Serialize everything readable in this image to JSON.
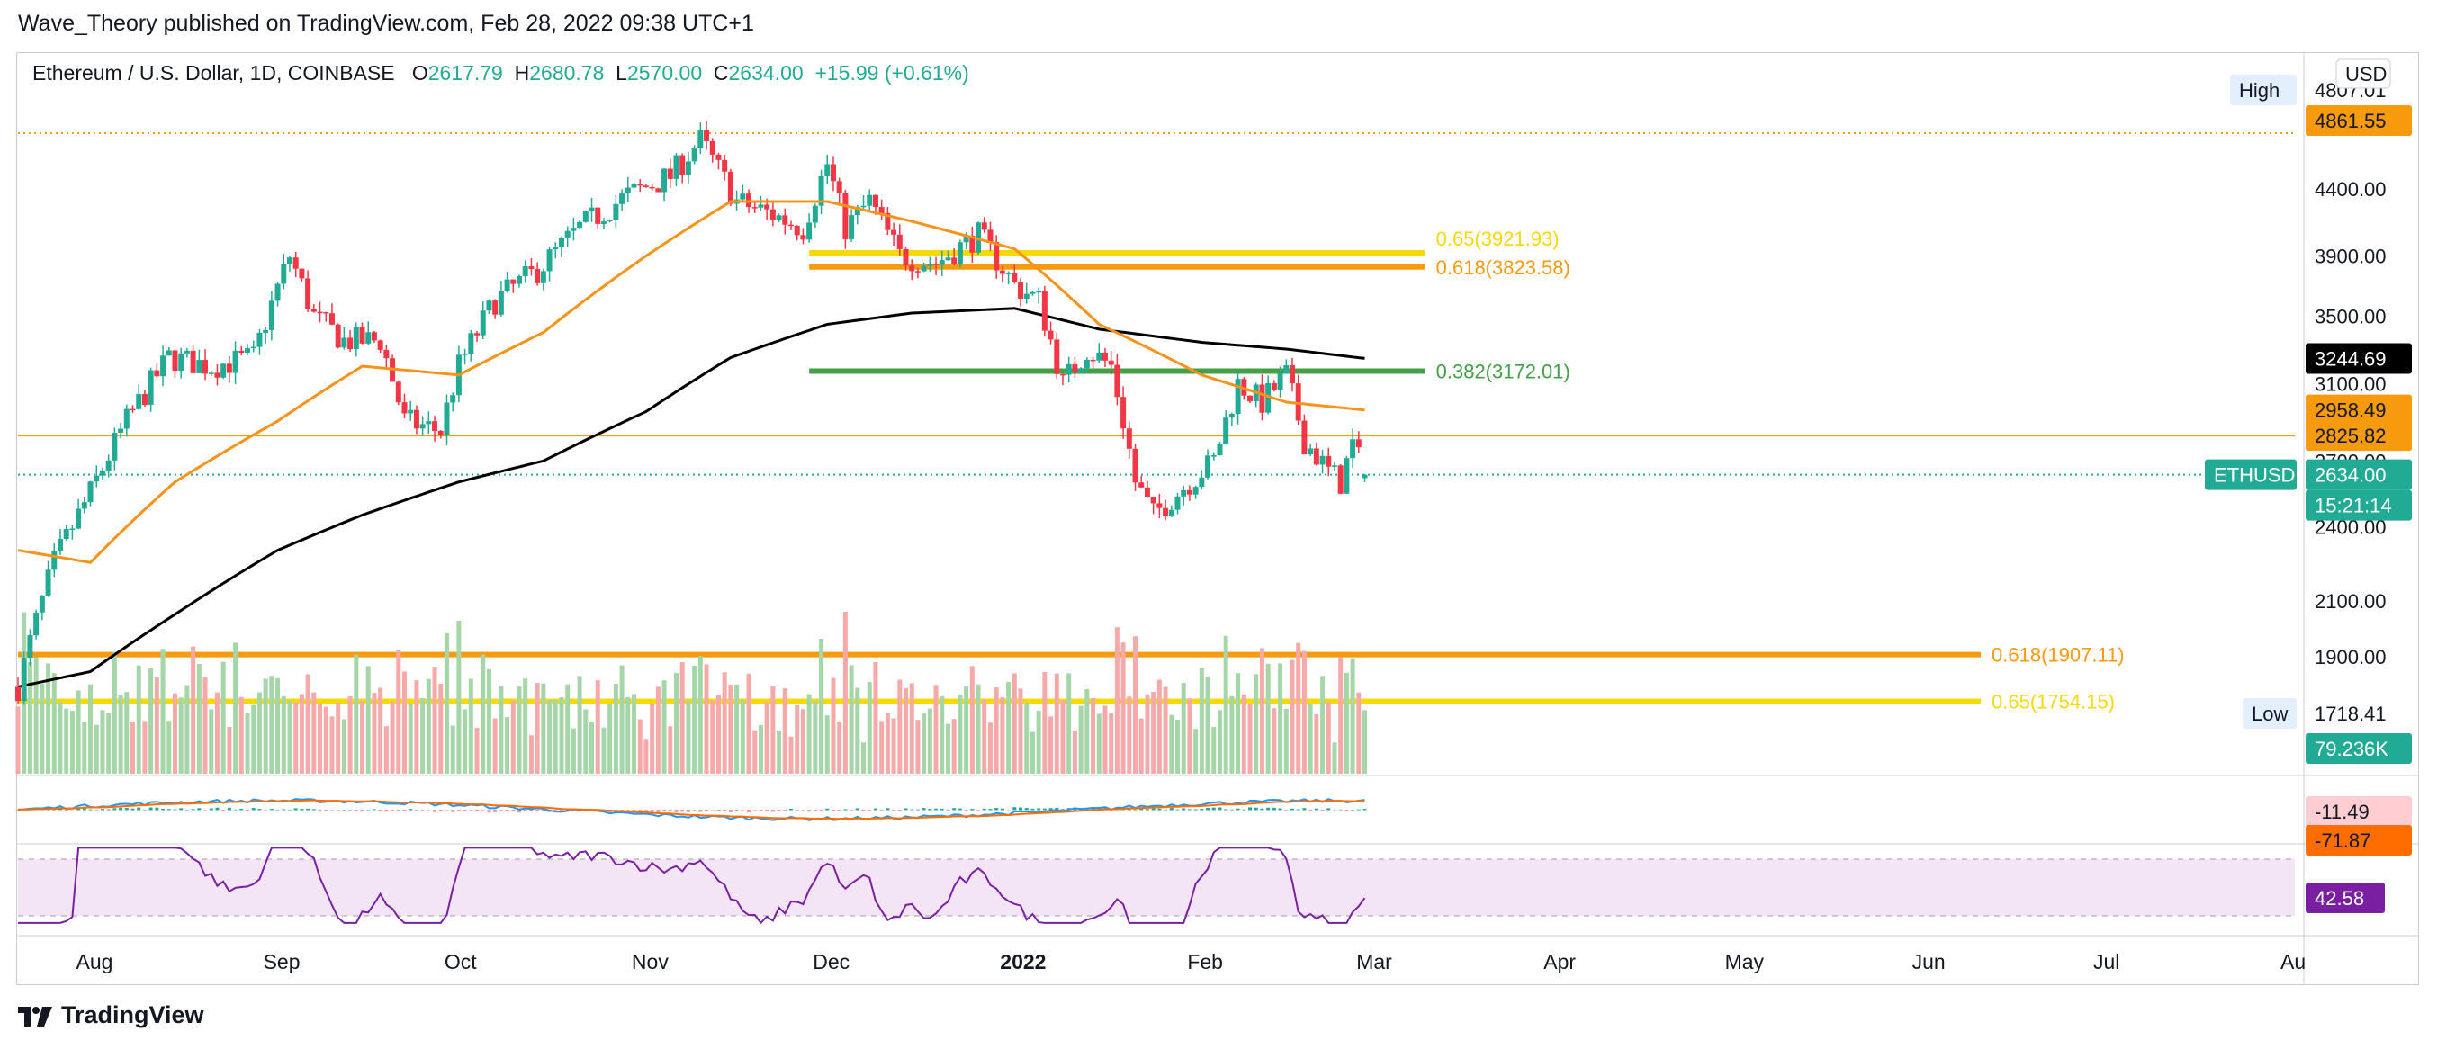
{
  "header": {
    "publisher": "Wave_Theory published on TradingView.com, Feb 28, 2022 09:38 UTC+1"
  },
  "legend": {
    "symbol": "Ethereum / U.S. Dollar, 1D, COINBASE",
    "open_label": "O",
    "open": "2617.79",
    "high_label": "H",
    "high": "2680.78",
    "low_label": "L",
    "low": "2570.00",
    "close_label": "C",
    "close": "2634.00",
    "change": "+15.99 (+0.61%)"
  },
  "currency_button": "USD",
  "footer": {
    "brand": "TradingView"
  },
  "colors": {
    "up": "#22ab94",
    "down": "#f23645",
    "ma_fast": "#f7931a",
    "ma_slow": "#000000",
    "fib_yellow": "#f5d90a",
    "fib_orange": "#f79a0e",
    "fib_green": "#43a047",
    "volume_up": "#a5d6a7",
    "volume_down": "#f5a9a9",
    "rsi": "#7b1fa2"
  },
  "chart_data": {
    "type": "candlestick",
    "symbol": "ETHUSD",
    "timeframe": "1D",
    "exchange": "COINBASE",
    "x_axis_ticks": [
      "Aug",
      "Sep",
      "Oct",
      "Nov",
      "Dec",
      "2022",
      "Feb",
      "Mar",
      "Apr",
      "May",
      "Jun",
      "Jul",
      "Au"
    ],
    "y_axis_ticks": [
      "4400.00",
      "3900.00",
      "3500.00",
      "3100.00",
      "2700.00",
      "2400.00",
      "2100.00",
      "1900.00"
    ],
    "y_scale": "log",
    "grid": false,
    "price_path": [
      [
        "2021-07-20",
        1800
      ],
      [
        "2021-07-26",
        2250
      ],
      [
        "2021-08-01",
        2550
      ],
      [
        "2021-08-07",
        2900
      ],
      [
        "2021-08-14",
        3250
      ],
      [
        "2021-08-21",
        3200
      ],
      [
        "2021-08-28",
        3250
      ],
      [
        "2021-09-03",
        3900
      ],
      [
        "2021-09-07",
        3500
      ],
      [
        "2021-09-12",
        3350
      ],
      [
        "2021-09-18",
        3350
      ],
      [
        "2021-09-22",
        2900
      ],
      [
        "2021-09-28",
        2850
      ],
      [
        "2021-10-01",
        3200
      ],
      [
        "2021-10-07",
        3600
      ],
      [
        "2021-10-14",
        3800
      ],
      [
        "2021-10-21",
        4100
      ],
      [
        "2021-10-29",
        4350
      ],
      [
        "2021-11-05",
        4500
      ],
      [
        "2021-11-10",
        4800
      ],
      [
        "2021-11-16",
        4300
      ],
      [
        "2021-11-22",
        4200
      ],
      [
        "2021-11-27",
        4100
      ],
      [
        "2021-12-01",
        4600
      ],
      [
        "2021-12-04",
        4100
      ],
      [
        "2021-12-08",
        4300
      ],
      [
        "2021-12-13",
        3900
      ],
      [
        "2021-12-19",
        3850
      ],
      [
        "2021-12-26",
        4050
      ],
      [
        "2022-01-01",
        3700
      ],
      [
        "2022-01-05",
        3600
      ],
      [
        "2022-01-09",
        3100
      ],
      [
        "2022-01-13",
        3300
      ],
      [
        "2022-01-17",
        3200
      ],
      [
        "2022-01-21",
        2600
      ],
      [
        "2022-01-24",
        2450
      ],
      [
        "2022-01-28",
        2550
      ],
      [
        "2022-02-03",
        2700
      ],
      [
        "2022-02-07",
        3100
      ],
      [
        "2022-02-11",
        3000
      ],
      [
        "2022-02-15",
        3150
      ],
      [
        "2022-02-18",
        2800
      ],
      [
        "2022-02-22",
        2650
      ],
      [
        "2022-02-24",
        2600
      ],
      [
        "2022-02-26",
        2780
      ],
      [
        "2022-02-28",
        2634
      ]
    ],
    "ma_fast_path": [
      [
        "2021-07-20",
        2300
      ],
      [
        "2021-08-01",
        2250
      ],
      [
        "2021-08-15",
        2600
      ],
      [
        "2021-09-01",
        2900
      ],
      [
        "2021-09-15",
        3200
      ],
      [
        "2021-10-01",
        3150
      ],
      [
        "2021-10-15",
        3400
      ],
      [
        "2021-11-01",
        3900
      ],
      [
        "2021-11-15",
        4300
      ],
      [
        "2021-12-01",
        4300
      ],
      [
        "2021-12-15",
        4150
      ],
      [
        "2022-01-01",
        3950
      ],
      [
        "2022-01-15",
        3450
      ],
      [
        "2022-02-01",
        3150
      ],
      [
        "2022-02-15",
        3000
      ],
      [
        "2022-02-28",
        2958
      ]
    ],
    "ma_slow_path": [
      [
        "2021-07-20",
        1800
      ],
      [
        "2021-08-01",
        1850
      ],
      [
        "2021-08-15",
        2050
      ],
      [
        "2021-09-01",
        2300
      ],
      [
        "2021-09-15",
        2450
      ],
      [
        "2021-10-01",
        2600
      ],
      [
        "2021-10-15",
        2700
      ],
      [
        "2021-11-01",
        2950
      ],
      [
        "2021-11-15",
        3250
      ],
      [
        "2021-12-01",
        3450
      ],
      [
        "2021-12-15",
        3520
      ],
      [
        "2022-01-01",
        3550
      ],
      [
        "2022-01-15",
        3420
      ],
      [
        "2022-02-01",
        3340
      ],
      [
        "2022-02-15",
        3300
      ],
      [
        "2022-02-28",
        3245
      ]
    ],
    "levels": [
      {
        "label": "0.65(3921.93)",
        "price": 3921.93,
        "color_key": "fib_yellow",
        "from": "2021-11-28",
        "to": "2022-03-31"
      },
      {
        "label": "0.618(3823.58)",
        "price": 3823.58,
        "color_key": "fib_orange",
        "from": "2021-11-28",
        "to": "2022-03-31"
      },
      {
        "label": "0.382(3172.01)",
        "price": 3172.01,
        "color_key": "fib_green",
        "from": "2021-11-28",
        "to": "2022-03-31"
      },
      {
        "label": "0.618(1907.11)",
        "price": 1907.11,
        "color_key": "fib_orange",
        "from": "2021-07-20",
        "to": "2022-06-27"
      },
      {
        "label": "0.65(1754.15)",
        "price": 1754.15,
        "color_key": "fib_yellow",
        "from": "2021-07-20",
        "to": "2022-06-27"
      }
    ],
    "horizontal_lines": [
      {
        "price": 4861.55,
        "style": "dotted",
        "color_key": "fib_orange"
      },
      {
        "price": 2825.82,
        "style": "solid",
        "color_key": "fib_orange"
      },
      {
        "price": 2634.0,
        "style": "dotted",
        "color_key": "up"
      }
    ],
    "price_labels": [
      {
        "text": "4807.01",
        "price": 4807.01,
        "bg": "#ffffff",
        "fg": "#131722",
        "tag": "High"
      },
      {
        "text": "4861.55",
        "price": 4861.55,
        "bg": "#f79a0e",
        "fg": "#131722"
      },
      {
        "text": "3244.69",
        "price": 3244.69,
        "bg": "#000000",
        "fg": "#ffffff"
      },
      {
        "text": "2958.49",
        "price": 2958.49,
        "bg": "#f79a0e",
        "fg": "#131722"
      },
      {
        "text": "2825.82",
        "price": 2825.82,
        "bg": "#f79a0e",
        "fg": "#131722"
      },
      {
        "text": "2634.00",
        "price": 2634.0,
        "bg": "#22ab94",
        "fg": "#ffffff",
        "tag": "ETHUSD",
        "sub": "15:21:14"
      },
      {
        "text": "1718.41",
        "price": 1718.41,
        "bg": "#ffffff",
        "fg": "#131722",
        "tag": "Low"
      }
    ],
    "volume": {
      "last_label": "79.236K"
    },
    "macd": {
      "macd_label": "-11.49",
      "signal_label": "-71.87"
    },
    "rsi": {
      "label": "42.58",
      "value": 42.58,
      "upper": 70,
      "lower": 30
    }
  }
}
